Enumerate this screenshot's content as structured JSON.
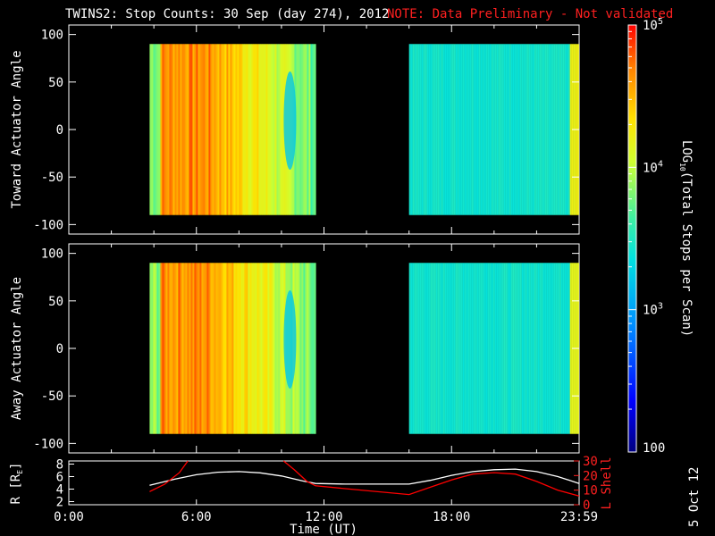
{
  "title": "TWINS2: Stop Counts: 30 Sep (day 274), 2012",
  "note": "NOTE: Data Preliminary - Not validated",
  "date_stamp": "5 Oct 12",
  "chart_data": [
    {
      "type": "heatmap",
      "panel": "toward",
      "ylabel": "Toward Actuator Angle",
      "ylim": [
        -110,
        110
      ],
      "yticks": [
        "100",
        "50",
        "0",
        "-50",
        "-100"
      ],
      "xlim": [
        0,
        24
      ],
      "blocks": [
        {
          "t_start": 3.8,
          "t_end": 11.6,
          "angle_min": -90,
          "angle_max": 90
        },
        {
          "t_start": 16.0,
          "t_end": 24.0,
          "angle_min": -90,
          "angle_max": 90
        }
      ]
    },
    {
      "type": "heatmap",
      "panel": "away",
      "ylabel": "Away Actuator Angle",
      "ylim": [
        -110,
        110
      ],
      "yticks": [
        "100",
        "50",
        "0",
        "-50",
        "-100"
      ],
      "xlim": [
        0,
        24
      ],
      "blocks": [
        {
          "t_start": 3.8,
          "t_end": 11.6,
          "angle_min": -90,
          "angle_max": 90
        },
        {
          "t_start": 16.0,
          "t_end": 24.0,
          "angle_min": -90,
          "angle_max": 90
        }
      ]
    },
    {
      "type": "line",
      "panel": "orbit",
      "xlabel": "Time (UT)",
      "xticks": [
        "0:00",
        "6:00",
        "12:00",
        "18:00",
        "23:59"
      ],
      "xtick_values": [
        0,
        6,
        12,
        18,
        24
      ],
      "ylabel_left": "R [R",
      "ylabel_left_sub": "E",
      "ylabel_left_close": "]",
      "yticks_left": [
        "8",
        "6",
        "4",
        "2"
      ],
      "ylim_left": [
        1.5,
        8.5
      ],
      "ylabel_right": "L Shell",
      "yticks_right": [
        "30",
        "20",
        "10",
        "0"
      ],
      "ylim_right": [
        0,
        30
      ],
      "series": [
        {
          "axis": "left",
          "color": "#ffffff",
          "x": [
            3.8,
            5,
            6,
            7,
            8,
            9,
            10,
            11,
            11.6,
            13,
            16,
            17,
            18,
            19,
            20,
            21,
            22,
            23,
            24
          ],
          "y": [
            4.6,
            5.6,
            6.3,
            6.7,
            6.8,
            6.6,
            6.1,
            5.3,
            4.9,
            4.8,
            4.8,
            5.4,
            6.2,
            6.8,
            7.1,
            7.2,
            6.8,
            6.0,
            4.9
          ]
        },
        {
          "axis": "right",
          "color": "#ff0000",
          "x": [
            3.8,
            4.5,
            5.2,
            5.6
          ],
          "y": [
            9,
            14,
            22,
            30
          ]
        },
        {
          "axis": "right",
          "color": "#ff0000",
          "x": [
            10.1,
            10.6,
            11.2,
            11.6,
            13,
            16,
            17,
            18,
            19,
            20,
            21,
            22,
            23,
            24
          ],
          "y": [
            30,
            24,
            16,
            13,
            11,
            7,
            12,
            17,
            21,
            22,
            21,
            16,
            10,
            6
          ]
        }
      ]
    }
  ],
  "colorbar": {
    "label": "LOG",
    "label_sub": "10",
    "label_rest": "(Total Stops per Scan)",
    "tick_major": [
      "10",
      "10",
      "10"
    ],
    "tick_exp": [
      "5",
      "4",
      "3"
    ],
    "tick_values": [
      5,
      4,
      3
    ],
    "bottom_label": "100",
    "range": [
      2,
      5
    ]
  }
}
